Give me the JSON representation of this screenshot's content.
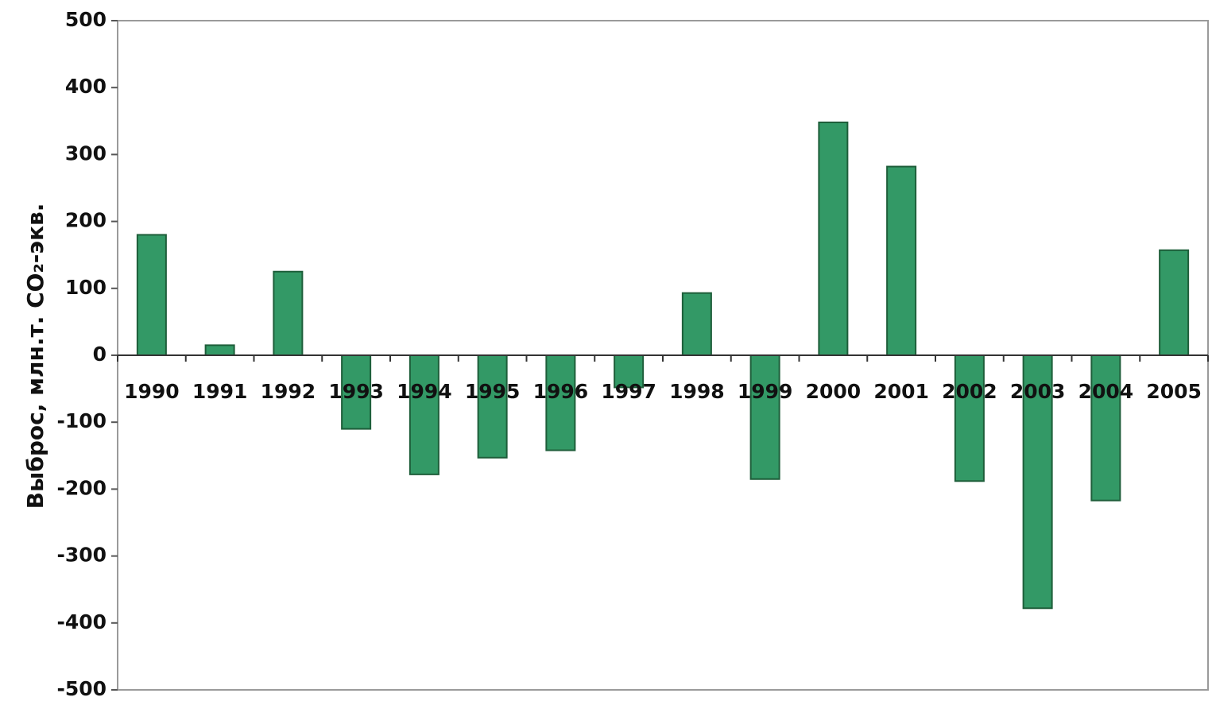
{
  "chart_data": {
    "type": "bar",
    "categories": [
      "1990",
      "1991",
      "1992",
      "1993",
      "1994",
      "1995",
      "1996",
      "1997",
      "1998",
      "1999",
      "2000",
      "2001",
      "2002",
      "2003",
      "2004",
      "2005"
    ],
    "values": [
      180,
      15,
      125,
      -110,
      -178,
      -153,
      -142,
      -48,
      93,
      -185,
      348,
      282,
      -188,
      -378,
      -217,
      157
    ],
    "ylabel": "Выброс, млн.т. CO₂-экв.",
    "ylim": [
      -500,
      500
    ],
    "yticks": [
      500,
      400,
      300,
      200,
      100,
      0,
      -100,
      -200,
      -300,
      -400,
      -500
    ],
    "bar_color": "#339966",
    "grid": false,
    "legend": "none"
  }
}
